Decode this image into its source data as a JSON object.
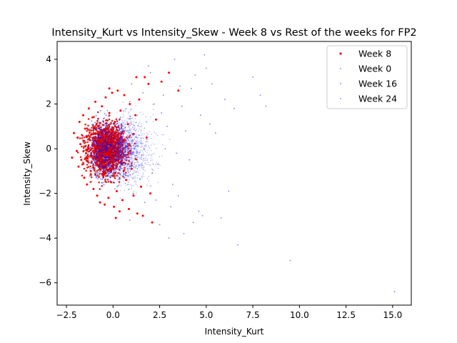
{
  "chart_data": {
    "type": "scatter",
    "title": "Intensity_Kurt vs Intensity_Skew - Week 8 vs Rest of the weeks for FP2",
    "xlabel": "Intensity_Kurt",
    "ylabel": "Intensity_Skew",
    "xlim": [
      -3.0,
      16.0
    ],
    "ylim": [
      -7.0,
      4.8
    ],
    "x_ticks": [
      -2.5,
      0.0,
      2.5,
      5.0,
      7.5,
      10.0,
      12.5,
      15.0
    ],
    "x_tick_labels": [
      "−2.5",
      "0.0",
      "2.5",
      "5.0",
      "7.5",
      "10.0",
      "12.5",
      "15.0"
    ],
    "y_ticks": [
      -6,
      -4,
      -2,
      0,
      2,
      4
    ],
    "y_tick_labels": [
      "−6",
      "−4",
      "−2",
      "0",
      "2",
      "4"
    ],
    "grid": false,
    "legend_position": "top-right",
    "series": [
      {
        "name": "Week 8",
        "color": "#ff0000",
        "marker_edge": "#d40000",
        "points": [
          [
            -2.2,
            -0.4
          ],
          [
            -2.1,
            0.7
          ],
          [
            -1.95,
            -0.1
          ],
          [
            -1.9,
            0.5
          ],
          [
            -1.85,
            -0.8
          ],
          [
            -1.8,
            1.2
          ],
          [
            -1.75,
            0.2
          ],
          [
            -1.7,
            -0.5
          ],
          [
            -1.6,
            1.5
          ],
          [
            -1.55,
            -1.3
          ],
          [
            -1.5,
            0.9
          ],
          [
            -1.45,
            -0.2
          ],
          [
            -1.4,
            -1.6
          ],
          [
            -1.3,
            1.8
          ],
          [
            -1.25,
            0.4
          ],
          [
            -1.2,
            -1.0
          ],
          [
            -1.1,
            1.4
          ],
          [
            -1.05,
            -1.8
          ],
          [
            -1.0,
            0.1
          ],
          [
            -0.95,
            2.1
          ],
          [
            -0.9,
            -0.7
          ],
          [
            -0.85,
            -2.1
          ],
          [
            -0.8,
            1.0
          ],
          [
            -0.7,
            -2.4
          ],
          [
            -0.6,
            1.9
          ],
          [
            -0.55,
            -1.2
          ],
          [
            -0.5,
            0.6
          ],
          [
            -0.45,
            -2.5
          ],
          [
            -0.4,
            2.3
          ],
          [
            -0.3,
            -0.3
          ],
          [
            -0.25,
            -2.2
          ],
          [
            -0.2,
            1.6
          ],
          [
            -0.1,
            -1.5
          ],
          [
            -0.05,
            2.5
          ],
          [
            0.0,
            0.8
          ],
          [
            0.05,
            -2.6
          ],
          [
            0.1,
            1.2
          ],
          [
            0.2,
            -1.9
          ],
          [
            0.25,
            2.6
          ],
          [
            0.3,
            -0.6
          ],
          [
            0.35,
            -2.8
          ],
          [
            0.4,
            1.7
          ],
          [
            0.5,
            -2.3
          ],
          [
            0.55,
            0.3
          ],
          [
            0.6,
            2.4
          ],
          [
            0.7,
            -1.4
          ],
          [
            0.8,
            1.1
          ],
          [
            0.85,
            -2.7
          ],
          [
            0.9,
            2.0
          ],
          [
            1.0,
            -0.9
          ],
          [
            1.1,
            -2.1
          ],
          [
            1.2,
            1.5
          ],
          [
            1.3,
            -2.9
          ],
          [
            1.4,
            2.2
          ],
          [
            1.5,
            -1.7
          ],
          [
            1.6,
            -3.0
          ],
          [
            1.7,
            3.2
          ],
          [
            1.8,
            0.5
          ],
          [
            1.9,
            2.9
          ],
          [
            2.0,
            -2.0
          ],
          [
            2.1,
            -3.3
          ],
          [
            2.3,
            1.3
          ],
          [
            2.6,
            3.0
          ],
          [
            3.0,
            3.4
          ],
          [
            3.5,
            2.6
          ],
          [
            -0.2,
            2.7
          ],
          [
            0.15,
            -3.1
          ],
          [
            1.25,
            3.2
          ]
        ]
      },
      {
        "name": "Week 0",
        "color": "#0000ff",
        "points": [
          [
            -1.6,
            0.3
          ],
          [
            -1.2,
            -0.6
          ],
          [
            -0.8,
            1.3
          ],
          [
            -0.5,
            -1.5
          ],
          [
            -0.2,
            0.2
          ],
          [
            0.3,
            -0.4
          ],
          [
            0.7,
            1.8
          ],
          [
            1.1,
            -2.0
          ],
          [
            1.6,
            2.5
          ],
          [
            2.1,
            -1.1
          ],
          [
            2.6,
            1.6
          ],
          [
            3.1,
            -2.6
          ],
          [
            3.6,
            2.8
          ],
          [
            4.1,
            -0.5
          ],
          [
            4.4,
            3.3
          ],
          [
            4.8,
            -3.0
          ],
          [
            5.2,
            1.1
          ],
          [
            3.3,
            4.0
          ],
          [
            3.8,
            -3.8
          ],
          [
            6.7,
            -4.3
          ],
          [
            1.9,
            3.7
          ],
          [
            0.9,
            -3.2
          ],
          [
            2.8,
            0.0
          ],
          [
            1.4,
            0.6
          ]
        ]
      },
      {
        "name": "Week 16",
        "color": "#0000ff",
        "points": [
          [
            -1.5,
            -0.3
          ],
          [
            -1.0,
            0.9
          ],
          [
            -0.6,
            -1.1
          ],
          [
            -0.3,
            1.7
          ],
          [
            0.1,
            -1.8
          ],
          [
            0.5,
            0.5
          ],
          [
            0.9,
            2.1
          ],
          [
            1.3,
            -0.9
          ],
          [
            1.8,
            1.2
          ],
          [
            2.3,
            -2.3
          ],
          [
            2.7,
            2.4
          ],
          [
            3.2,
            -1.6
          ],
          [
            3.7,
            1.9
          ],
          [
            4.2,
            2.7
          ],
          [
            4.6,
            -2.8
          ],
          [
            5.0,
            3.6
          ],
          [
            5.5,
            0.7
          ],
          [
            6.0,
            2.2
          ],
          [
            6.2,
            -1.9
          ],
          [
            7.5,
            3.2
          ],
          [
            9.5,
            -5.0
          ],
          [
            2.5,
            -3.4
          ],
          [
            3.4,
            -0.2
          ],
          [
            4.9,
            4.2
          ]
        ]
      },
      {
        "name": "Week 24",
        "color": "#0000ff",
        "points": [
          [
            -1.4,
            0.6
          ],
          [
            -0.9,
            -1.3
          ],
          [
            -0.4,
            0.4
          ],
          [
            0.0,
            -0.8
          ],
          [
            0.4,
            1.4
          ],
          [
            0.8,
            -1.6
          ],
          [
            1.2,
            0.1
          ],
          [
            1.7,
            -2.4
          ],
          [
            2.2,
            2.0
          ],
          [
            2.4,
            -0.7
          ],
          [
            2.9,
            1.0
          ],
          [
            3.5,
            -2.1
          ],
          [
            3.9,
            0.8
          ],
          [
            4.3,
            -3.3
          ],
          [
            4.7,
            1.5
          ],
          [
            5.3,
            2.9
          ],
          [
            5.8,
            -3.1
          ],
          [
            6.5,
            1.8
          ],
          [
            8.2,
            1.9
          ],
          [
            7.9,
            2.4
          ],
          [
            15.1,
            -6.4
          ],
          [
            2.0,
            3.4
          ],
          [
            3.0,
            -4.0
          ],
          [
            1.0,
            2.9
          ]
        ]
      }
    ]
  }
}
